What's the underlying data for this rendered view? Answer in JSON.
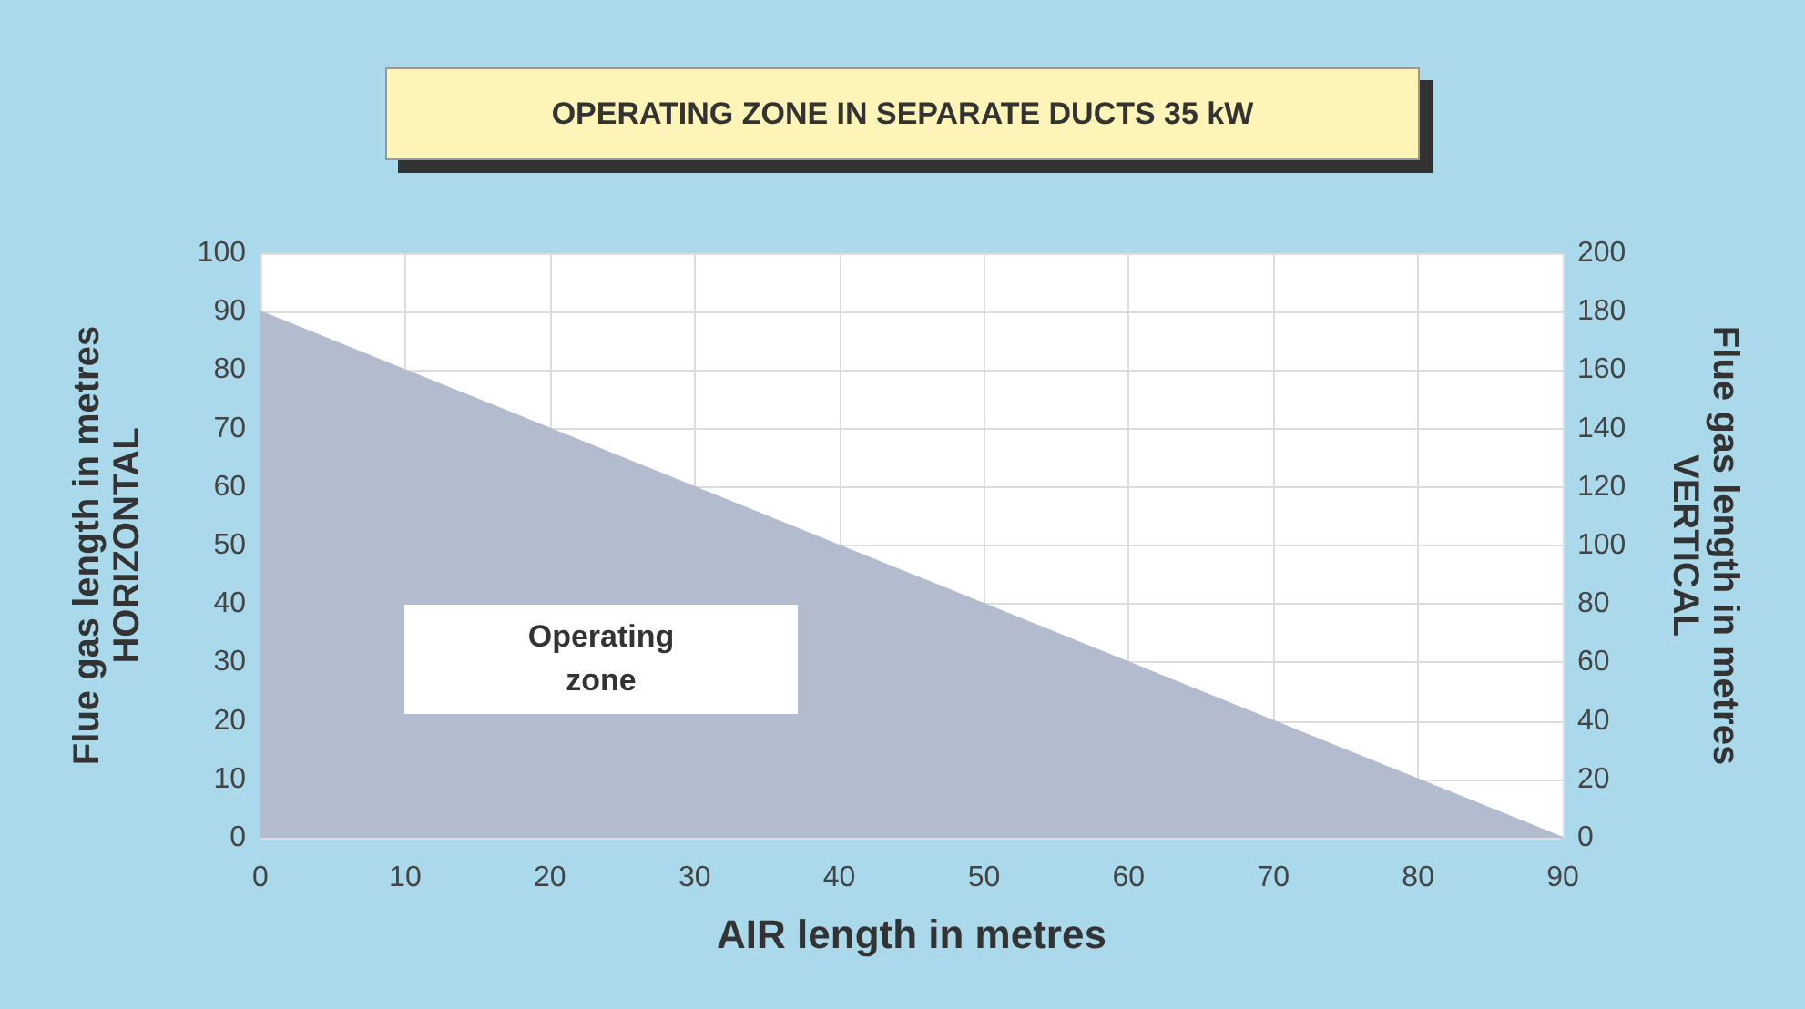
{
  "chart_data": {
    "type": "area",
    "title": "OPERATING ZONE IN SEPARATE DUCTS 35 kW",
    "xlabel": "AIR length in metres",
    "ylabel": "Flue gas length in metres\nHORIZONTAL",
    "y2label": "Flue gas length in metres\nVERTICAL",
    "x": [
      0,
      90
    ],
    "series": [
      {
        "color": "#b3bccf",
        "values": [
          90,
          0
        ]
      }
    ],
    "xlim": [
      0,
      90
    ],
    "xticks": [
      0,
      10,
      20,
      30,
      40,
      50,
      60,
      70,
      80,
      90
    ],
    "ylim": [
      0,
      100
    ],
    "yticks": [
      0,
      10,
      20,
      30,
      40,
      50,
      60,
      70,
      80,
      90,
      100
    ],
    "y2lim": [
      0,
      200
    ],
    "y2ticks": [
      0,
      20,
      40,
      60,
      80,
      100,
      120,
      140,
      160,
      180,
      200
    ],
    "annotations": [
      "Operating\nzone"
    ],
    "grid": true,
    "marker": "none"
  }
}
